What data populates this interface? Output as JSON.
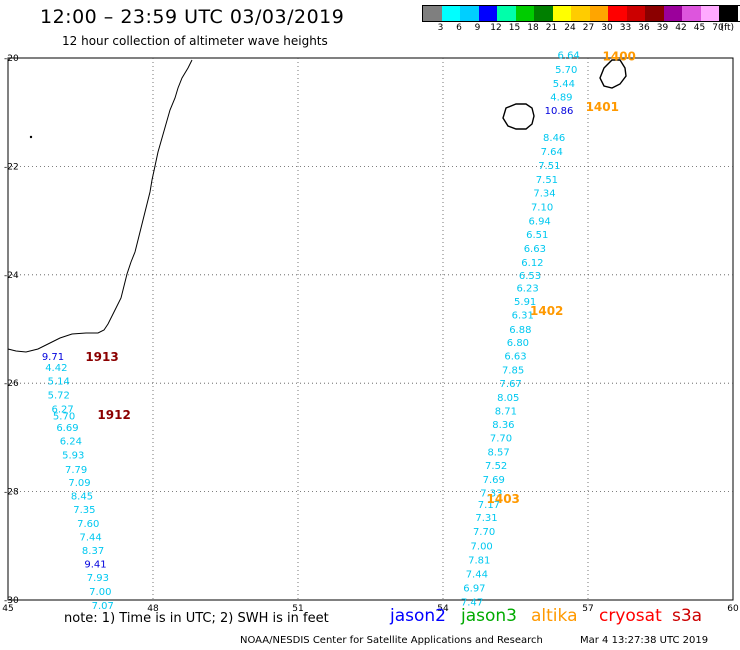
{
  "header": {
    "title": "12:00 – 23:59 UTC 03/03/2019",
    "subtitle": "12 hour collection of altimeter wave heights"
  },
  "color_scale": {
    "colors": [
      "#7f7f7f",
      "#00ffff",
      "#00cfff",
      "#0000ff",
      "#00ffaa",
      "#00cc00",
      "#007f00",
      "#ffff00",
      "#ffcc00",
      "#ffa500",
      "#ff0000",
      "#cc0000",
      "#8b0000",
      "#9b009b",
      "#dd55dd",
      "#ffaaff",
      "#000000"
    ],
    "labels": [
      "3",
      "6",
      "9",
      "12",
      "15",
      "18",
      "21",
      "24",
      "27",
      "30",
      "33",
      "36",
      "39",
      "42",
      "45",
      "70",
      "(ft)"
    ]
  },
  "chart_data": {
    "type": "scatter",
    "title": "12:00 – 23:59 UTC 03/03/2019",
    "subtitle": "12 hour collection of altimeter wave heights",
    "xlim": [
      45,
      60
    ],
    "ylim": [
      -30,
      -20
    ],
    "x_ticks": [
      45,
      48,
      51,
      54,
      57,
      60
    ],
    "y_ticks": [
      -20,
      -22,
      -24,
      -26,
      -28,
      -30
    ],
    "x_tick_labels": [
      "45",
      "48",
      "51",
      "54",
      "57",
      "60"
    ],
    "y_tick_labels": [
      "-20",
      "-22",
      "-24",
      "-26",
      "-28",
      "-30"
    ],
    "grid": "dotted",
    "series": [
      {
        "name": "1913",
        "color": "#00c8f0",
        "label": {
          "text": "1913",
          "x": 46.6,
          "y": -25.5,
          "color": "#8b0000"
        },
        "points": [
          {
            "x": 45.93,
            "y": -25.5,
            "v": "9.71",
            "c": "#0000dd"
          },
          {
            "x": 46.0,
            "y": -25.7,
            "v": "4.42"
          },
          {
            "x": 46.05,
            "y": -25.95,
            "v": "5.14"
          }
        ]
      },
      {
        "name": "1912",
        "color": "#00c8f0",
        "label": {
          "text": "1912",
          "x": 46.85,
          "y": -26.57,
          "color": "#8b0000"
        },
        "points": [
          {
            "x": 46.05,
            "y": -26.21,
            "v": "5.72"
          },
          {
            "x": 46.13,
            "y": -26.47,
            "v": "6.27"
          },
          {
            "x": 46.16,
            "y": -26.6,
            "v": "5.70"
          },
          {
            "x": 46.23,
            "y": -26.81,
            "v": "6.69"
          },
          {
            "x": 46.3,
            "y": -27.06,
            "v": "6.24"
          },
          {
            "x": 46.35,
            "y": -27.32,
            "v": "5.93"
          },
          {
            "x": 46.41,
            "y": -27.58,
            "v": "7.79"
          },
          {
            "x": 46.48,
            "y": -27.82,
            "v": "7.09"
          },
          {
            "x": 46.53,
            "y": -28.07,
            "v": "8.45"
          },
          {
            "x": 46.58,
            "y": -28.32,
            "v": "7.35"
          },
          {
            "x": 46.66,
            "y": -28.58,
            "v": "7.60"
          },
          {
            "x": 46.71,
            "y": -28.83,
            "v": "7.44"
          },
          {
            "x": 46.76,
            "y": -29.08,
            "v": "8.37"
          },
          {
            "x": 46.81,
            "y": -29.33,
            "v": "9.41",
            "c": "#0000dd"
          },
          {
            "x": 46.86,
            "y": -29.58,
            "v": "7.93"
          },
          {
            "x": 46.91,
            "y": -29.83,
            "v": "7.00"
          },
          {
            "x": 46.96,
            "y": -30.09,
            "v": "7.07"
          }
        ]
      },
      {
        "name": "1400",
        "color": "#00c8f0",
        "label": {
          "text": "1400",
          "x": 57.3,
          "y": -19.95,
          "color": "#ff9900"
        },
        "points": [
          {
            "x": 56.6,
            "y": -19.94,
            "v": "6.64"
          },
          {
            "x": 56.55,
            "y": -20.2,
            "v": "5.70"
          },
          {
            "x": 56.5,
            "y": -20.46,
            "v": "5.44"
          },
          {
            "x": 56.45,
            "y": -20.71,
            "v": "4.89"
          }
        ]
      },
      {
        "name": "1401",
        "color": "#00c8f0",
        "label": {
          "text": "1401",
          "x": 56.95,
          "y": -20.89,
          "color": "#ff9900"
        },
        "points": [
          {
            "x": 56.4,
            "y": -20.96,
            "v": "10.86",
            "c": "#0000dd"
          },
          {
            "x": 56.3,
            "y": -21.46,
            "v": "8.46"
          },
          {
            "x": 56.25,
            "y": -21.72,
            "v": "7.64"
          },
          {
            "x": 56.2,
            "y": -21.97,
            "v": "7.51"
          },
          {
            "x": 56.15,
            "y": -22.23,
            "v": "7.51"
          },
          {
            "x": 56.1,
            "y": -22.48,
            "v": "7.34"
          },
          {
            "x": 56.05,
            "y": -22.74,
            "v": "7.10"
          },
          {
            "x": 56.0,
            "y": -23.0,
            "v": "6.94"
          },
          {
            "x": 55.95,
            "y": -23.25,
            "v": "6.51"
          },
          {
            "x": 55.9,
            "y": -23.51,
            "v": "6.63"
          },
          {
            "x": 55.85,
            "y": -23.76,
            "v": "6.12"
          },
          {
            "x": 55.8,
            "y": -24.0,
            "v": "6.53"
          }
        ]
      },
      {
        "name": "1402",
        "color": "#00c8f0",
        "label": {
          "text": "1402",
          "x": 55.8,
          "y": -24.65,
          "color": "#ff9900"
        },
        "points": [
          {
            "x": 55.75,
            "y": -24.23,
            "v": "6.23"
          },
          {
            "x": 55.7,
            "y": -24.48,
            "v": "5.91"
          },
          {
            "x": 55.65,
            "y": -24.73,
            "v": "6.31"
          },
          {
            "x": 55.6,
            "y": -25.0,
            "v": "6.88"
          },
          {
            "x": 55.55,
            "y": -25.24,
            "v": "6.80"
          },
          {
            "x": 55.5,
            "y": -25.49,
            "v": "6.63"
          },
          {
            "x": 55.45,
            "y": -25.75,
            "v": "7.85"
          },
          {
            "x": 55.4,
            "y": -26.0,
            "v": "7.67"
          },
          {
            "x": 55.35,
            "y": -26.25,
            "v": "8.05"
          },
          {
            "x": 55.3,
            "y": -26.5,
            "v": "8.71"
          },
          {
            "x": 55.25,
            "y": -26.75,
            "v": "8.36"
          },
          {
            "x": 55.2,
            "y": -27.0,
            "v": "7.70"
          },
          {
            "x": 55.15,
            "y": -27.26,
            "v": "8.57"
          },
          {
            "x": 55.1,
            "y": -27.51,
            "v": "7.52"
          },
          {
            "x": 55.05,
            "y": -27.77,
            "v": "7.69"
          },
          {
            "x": 55.0,
            "y": -28.02,
            "v": "7.33"
          }
        ]
      },
      {
        "name": "1403",
        "color": "#00c8f0",
        "label": {
          "text": "1403",
          "x": 54.9,
          "y": -28.12,
          "color": "#ff9900"
        },
        "points": [
          {
            "x": 54.95,
            "y": -28.23,
            "v": "7.17"
          },
          {
            "x": 54.9,
            "y": -28.47,
            "v": "7.31"
          },
          {
            "x": 54.85,
            "y": -28.73,
            "v": "7.70"
          },
          {
            "x": 54.8,
            "y": -28.99,
            "v": "7.00"
          },
          {
            "x": 54.75,
            "y": -29.25,
            "v": "7.81"
          },
          {
            "x": 54.7,
            "y": -29.51,
            "v": "7.44"
          },
          {
            "x": 54.65,
            "y": -29.77,
            "v": "6.97"
          },
          {
            "x": 54.6,
            "y": -30.03,
            "v": "7.47"
          }
        ]
      }
    ]
  },
  "footer": {
    "note": "note: 1) Time is in UTC; 2) SWH is in feet",
    "satellites": [
      {
        "name": "jason2",
        "color": "#0000ff"
      },
      {
        "name": "jason3",
        "color": "#00aa00"
      },
      {
        "name": "altika",
        "color": "#ff9900"
      },
      {
        "name": "cryosat",
        "color": "#ff0000"
      },
      {
        "name": "s3a",
        "color": "#cc0000"
      }
    ],
    "credit": "NOAA/NESDIS Center for Satellite Applications and Research",
    "timestamp": "Mar 4 13:27:38 UTC 2019"
  }
}
